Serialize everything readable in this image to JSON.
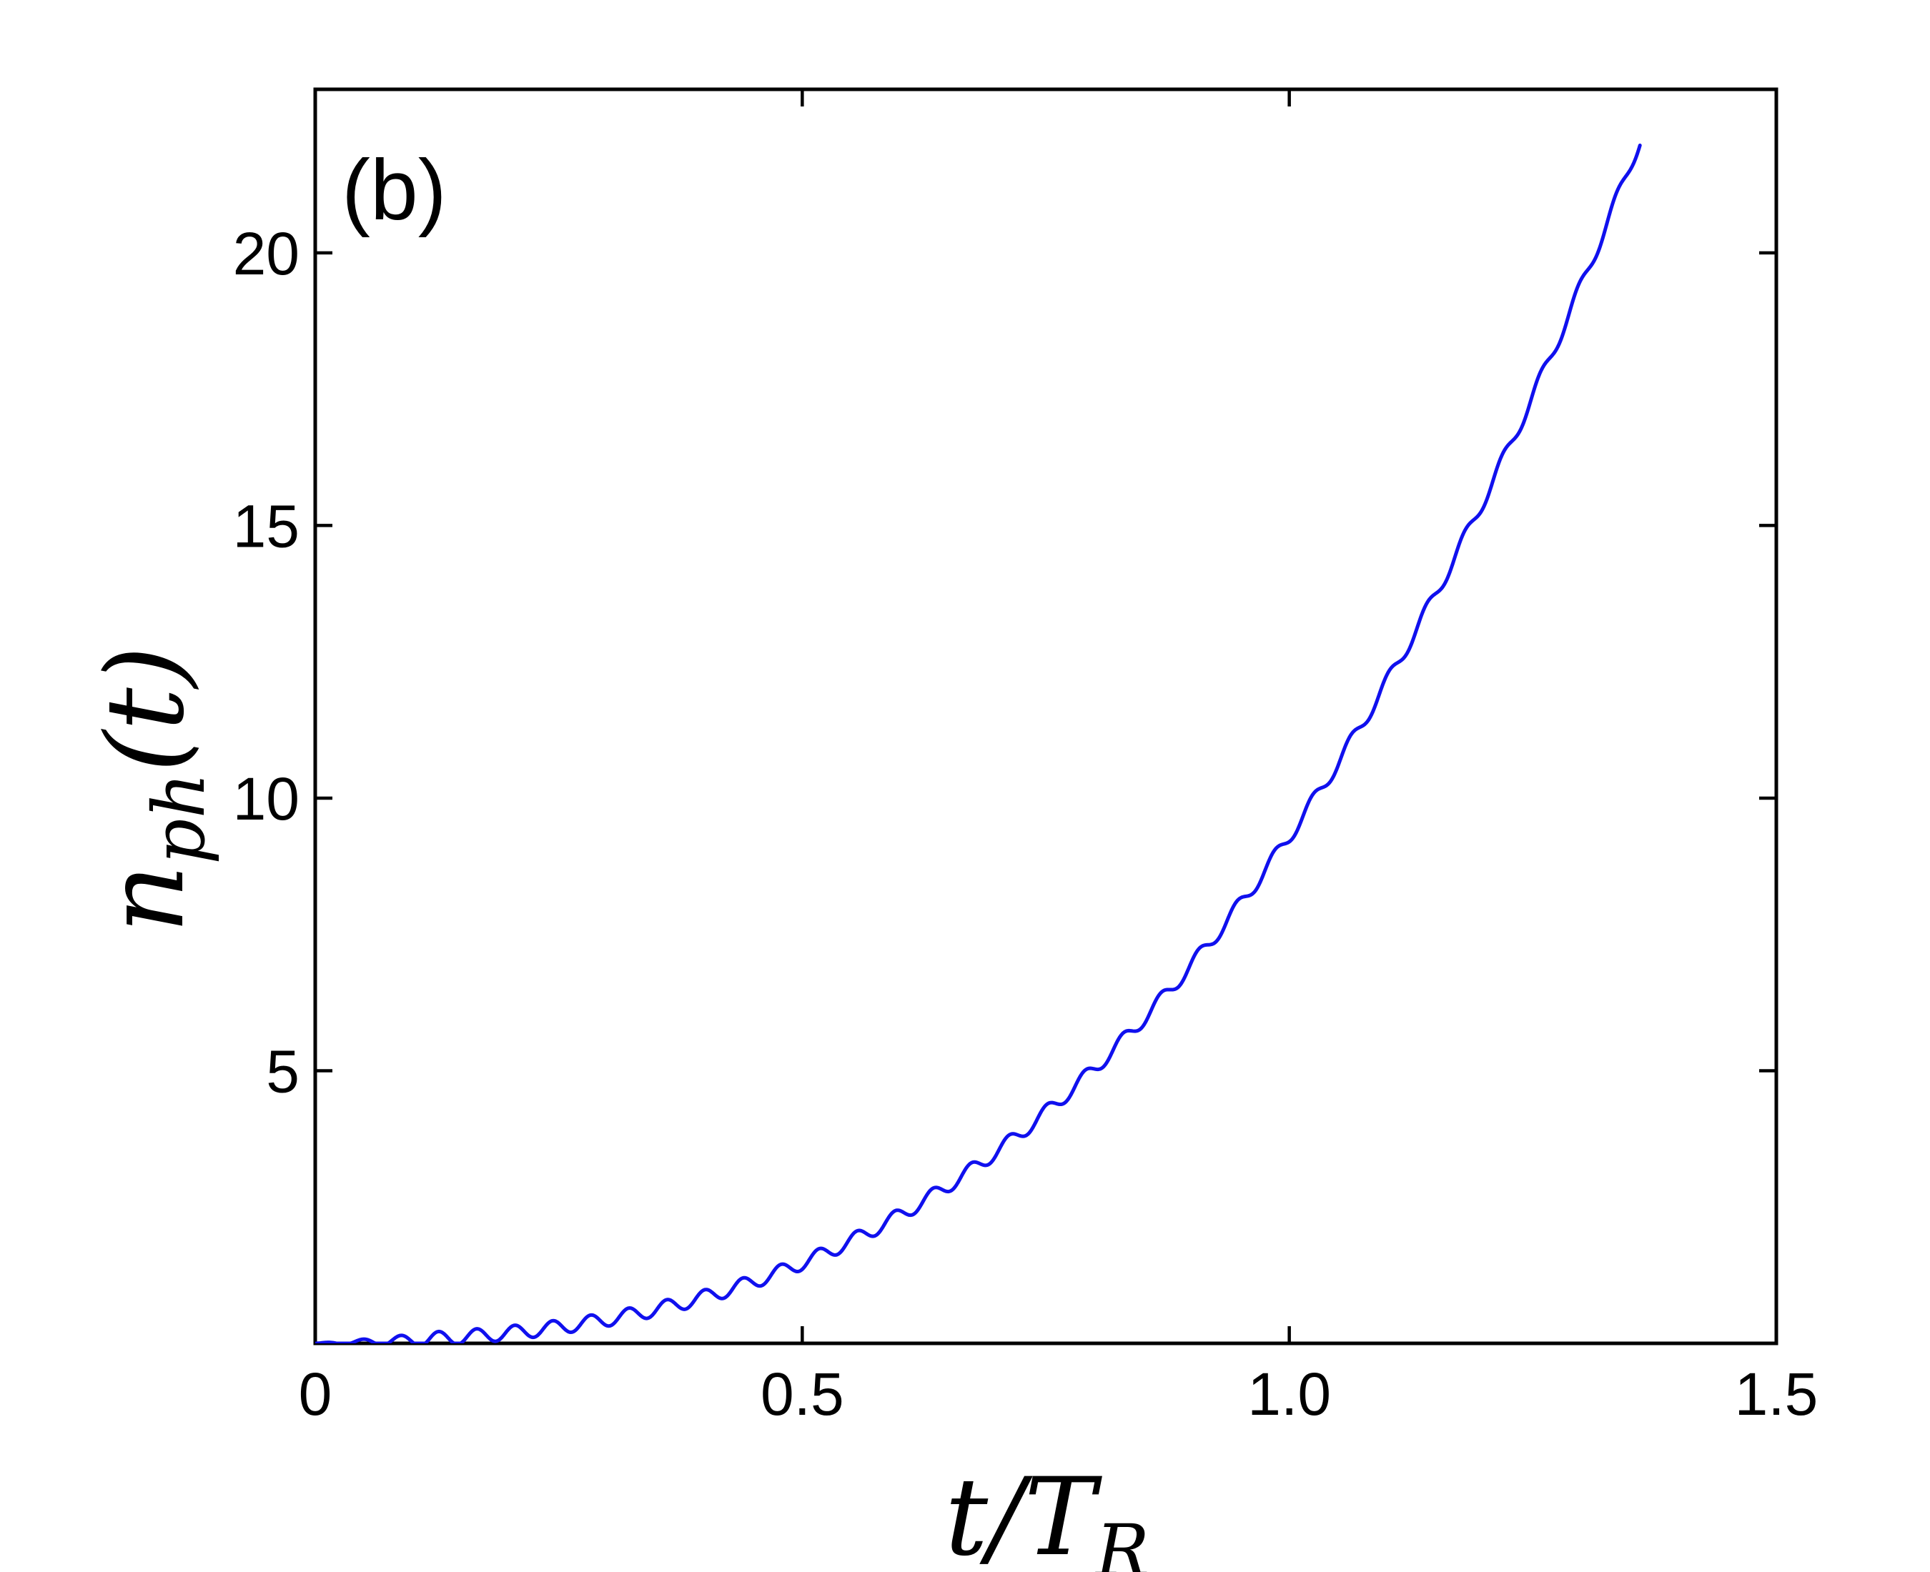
{
  "chart_data": {
    "type": "line",
    "panel_label": "(b)",
    "xlabel": {
      "base": "t/T",
      "sub": "R"
    },
    "ylabel": {
      "base": "n",
      "sub": "ph",
      "tail": "(t)"
    },
    "xlim": [
      0,
      1.5
    ],
    "ylim": [
      0,
      23
    ],
    "xticks": [
      {
        "value": 0,
        "label": "0"
      },
      {
        "value": 0.5,
        "label": "0.5"
      },
      {
        "value": 1.0,
        "label": "1.0"
      },
      {
        "value": 1.5,
        "label": "1.5"
      }
    ],
    "yticks": [
      {
        "value": 5,
        "label": "5"
      },
      {
        "value": 10,
        "label": "10"
      },
      {
        "value": 15,
        "label": "15"
      },
      {
        "value": 20,
        "label": "20"
      }
    ],
    "grid": false,
    "series": [
      {
        "color": "#1010ee",
        "model": {
          "form": "a*x^3 + b*x^2 + c*x + A*sin(2*pi*x/P)",
          "a": 7.6,
          "b": 1.3,
          "c": 0.4,
          "A": 0.13,
          "P": 0.039,
          "x_start": 0,
          "x_end": 1.36
        }
      }
    ]
  }
}
